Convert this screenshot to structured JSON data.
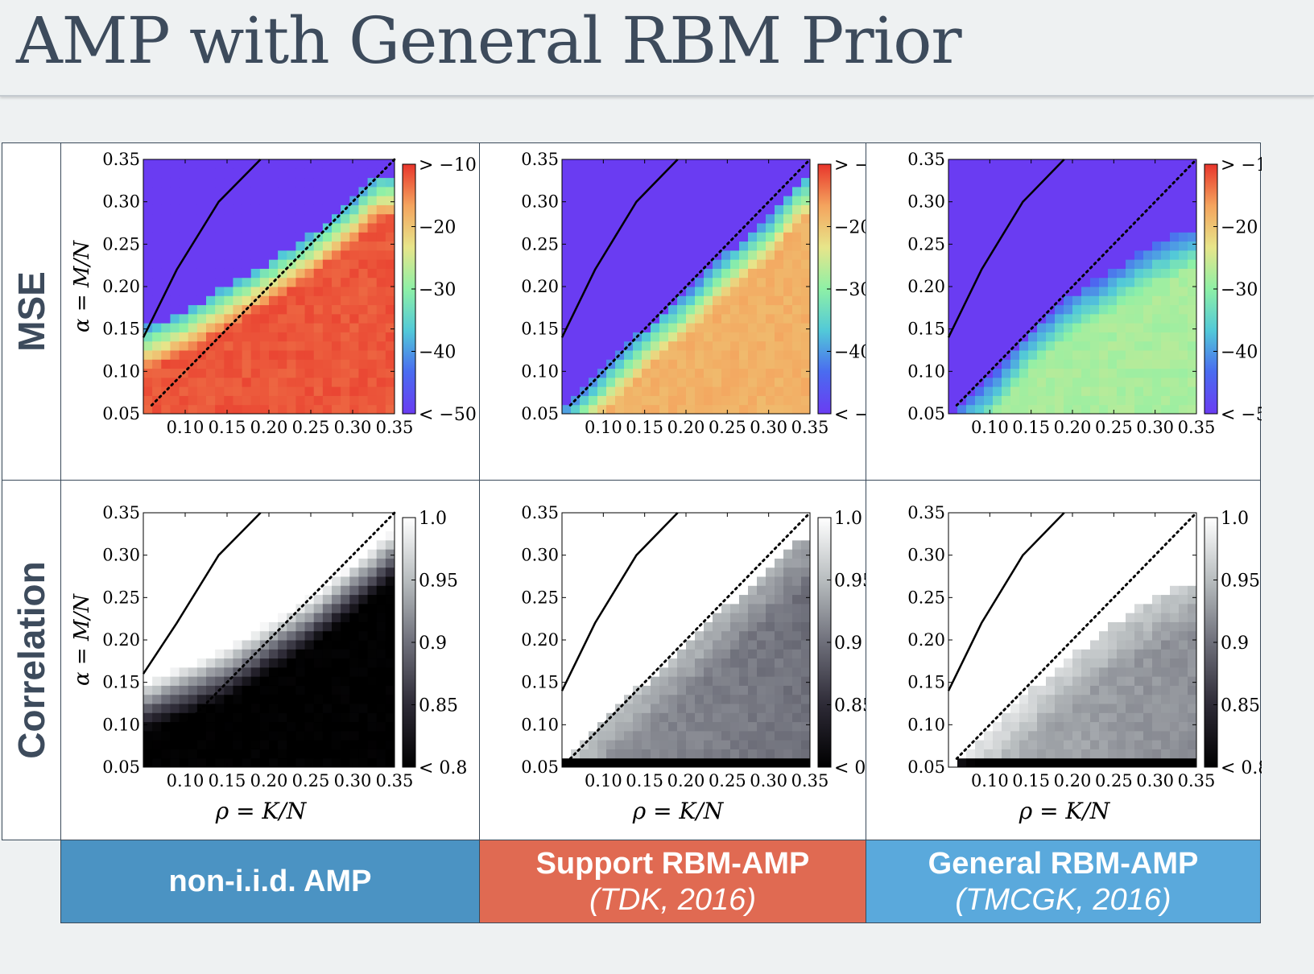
{
  "header": {
    "title": "AMP with General RBM Prior"
  },
  "rows": [
    {
      "label": "MSE"
    },
    {
      "label": "Correlation"
    }
  ],
  "columns": [
    {
      "main": "non-i.i.d. AMP",
      "sub": "",
      "color": "#4b93c3"
    },
    {
      "main": "Support RBM-AMP",
      "sub": "(TDK, 2016)",
      "color": "#e06a52"
    },
    {
      "main": "General RBM-AMP",
      "sub": "(TMCGK, 2016)",
      "color": "#5aa9dc"
    }
  ],
  "axes": {
    "ylabel": "α = M/N",
    "xlabel": "ρ = K/N",
    "x_ticks": [
      "0.10",
      "0.15",
      "0.20",
      "0.25",
      "0.30",
      "0.35"
    ],
    "y_ticks": [
      "0.05",
      "0.10",
      "0.15",
      "0.20",
      "0.25",
      "0.30",
      "0.35"
    ]
  },
  "colorbars": {
    "mse": {
      "ticks": [
        "> −10",
        "−20",
        "−30",
        "−40",
        "< −50"
      ],
      "values": [
        -10,
        -20,
        -30,
        -40,
        -50
      ],
      "colors": [
        "#e8352b",
        "#f4a45e",
        "#e7e58a",
        "#8ef0a6",
        "#52c9d8",
        "#4a6bf0",
        "#6a3cf2"
      ]
    },
    "corr": {
      "ticks": [
        "1.0",
        "0.95",
        "0.9",
        "0.85",
        "< 0.8"
      ],
      "values": [
        1.0,
        0.95,
        0.9,
        0.85,
        0.8
      ],
      "colors": [
        "#ffffff",
        "#b8bdbf",
        "#6e6f7a",
        "#2d2a36",
        "#000000"
      ]
    }
  },
  "chart_data": [
    {
      "type": "heatmap",
      "metric": "MSE",
      "method": "non-i.i.d. AMP",
      "xlim": [
        0.05,
        0.35
      ],
      "ylim": [
        0.05,
        0.35
      ],
      "colorbar_range": [
        -50,
        -10
      ],
      "boundary_rho": [
        0.05,
        0.1,
        0.15,
        0.2,
        0.25,
        0.3,
        0.33
      ],
      "boundary_alpha": [
        0.15,
        0.17,
        0.2,
        0.23,
        0.26,
        0.3,
        0.33
      ],
      "solid_line": [
        [
          0.05,
          0.14
        ],
        [
          0.09,
          0.22
        ],
        [
          0.14,
          0.3
        ],
        [
          0.19,
          0.35
        ]
      ],
      "dotted_line": [
        [
          0.06,
          0.06
        ],
        [
          0.35,
          0.35
        ]
      ],
      "low_value": -50,
      "high_value": -12
    },
    {
      "type": "heatmap",
      "metric": "MSE",
      "method": "Support RBM-AMP",
      "xlim": [
        0.05,
        0.35
      ],
      "ylim": [
        0.05,
        0.35
      ],
      "colorbar_range": [
        -50,
        -10
      ],
      "boundary_rho": [
        0.05,
        0.1,
        0.15,
        0.2,
        0.25,
        0.3,
        0.34
      ],
      "boundary_alpha": [
        0.05,
        0.1,
        0.15,
        0.19,
        0.24,
        0.28,
        0.33
      ],
      "solid_line": [
        [
          0.05,
          0.14
        ],
        [
          0.09,
          0.22
        ],
        [
          0.14,
          0.3
        ],
        [
          0.19,
          0.35
        ]
      ],
      "dotted_line": [
        [
          0.06,
          0.06
        ],
        [
          0.35,
          0.35
        ]
      ],
      "low_value": -50,
      "high_value": -18
    },
    {
      "type": "heatmap",
      "metric": "MSE",
      "method": "General RBM-AMP",
      "xlim": [
        0.05,
        0.35
      ],
      "ylim": [
        0.05,
        0.35
      ],
      "colorbar_range": [
        -50,
        -10
      ],
      "boundary_rho": [
        0.05,
        0.1,
        0.15,
        0.2,
        0.25,
        0.3,
        0.35
      ],
      "boundary_alpha": [
        0.05,
        0.09,
        0.15,
        0.19,
        0.22,
        0.25,
        0.27
      ],
      "solid_line": [
        [
          0.05,
          0.14
        ],
        [
          0.09,
          0.22
        ],
        [
          0.14,
          0.3
        ],
        [
          0.19,
          0.35
        ]
      ],
      "dotted_line": [
        [
          0.06,
          0.06
        ],
        [
          0.35,
          0.35
        ]
      ],
      "low_value": -50,
      "high_value": -28
    },
    {
      "type": "heatmap",
      "metric": "Correlation",
      "method": "non-i.i.d. AMP",
      "xlim": [
        0.05,
        0.35
      ],
      "ylim": [
        0.05,
        0.35
      ],
      "colorbar_range": [
        0.8,
        1.0
      ],
      "boundary_rho": [
        0.05,
        0.1,
        0.15,
        0.2,
        0.25,
        0.3,
        0.35
      ],
      "boundary_alpha": [
        0.15,
        0.17,
        0.19,
        0.22,
        0.25,
        0.29,
        0.33
      ],
      "solid_line": [
        [
          0.05,
          0.16
        ],
        [
          0.09,
          0.22
        ],
        [
          0.14,
          0.3
        ],
        [
          0.19,
          0.35
        ]
      ],
      "dotted_line": [
        [
          0.06,
          0.06
        ],
        [
          0.35,
          0.35
        ]
      ],
      "low_value": 0.8,
      "high_value": 1.0
    },
    {
      "type": "heatmap",
      "metric": "Correlation",
      "method": "Support RBM-AMP",
      "xlim": [
        0.05,
        0.35
      ],
      "ylim": [
        0.05,
        0.35
      ],
      "colorbar_range": [
        0.8,
        1.0
      ],
      "boundary_rho": [
        0.05,
        0.1,
        0.15,
        0.2,
        0.25,
        0.3,
        0.34
      ],
      "boundary_alpha": [
        0.06,
        0.11,
        0.15,
        0.19,
        0.24,
        0.28,
        0.32
      ],
      "solid_line": [
        [
          0.05,
          0.14
        ],
        [
          0.09,
          0.22
        ],
        [
          0.14,
          0.3
        ],
        [
          0.19,
          0.35
        ]
      ],
      "dotted_line": [
        [
          0.06,
          0.06
        ],
        [
          0.35,
          0.35
        ]
      ],
      "low_value": 0.8,
      "high_value": 0.97
    },
    {
      "type": "heatmap",
      "metric": "Correlation",
      "method": "General RBM-AMP",
      "xlim": [
        0.05,
        0.35
      ],
      "ylim": [
        0.05,
        0.35
      ],
      "colorbar_range": [
        0.8,
        1.0
      ],
      "boundary_rho": [
        0.05,
        0.1,
        0.15,
        0.2,
        0.25,
        0.3,
        0.35
      ],
      "boundary_alpha": [
        0.05,
        0.09,
        0.14,
        0.18,
        0.22,
        0.25,
        0.27
      ],
      "solid_line": [
        [
          0.05,
          0.14
        ],
        [
          0.09,
          0.22
        ],
        [
          0.14,
          0.3
        ],
        [
          0.19,
          0.35
        ]
      ],
      "dotted_line": [
        [
          0.06,
          0.06
        ],
        [
          0.35,
          0.35
        ]
      ],
      "low_value": 0.8,
      "high_value": 0.99
    }
  ]
}
